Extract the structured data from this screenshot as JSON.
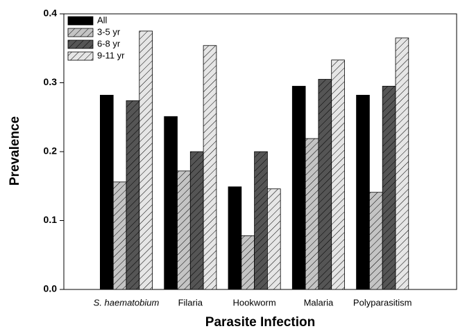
{
  "chart_data": {
    "type": "bar",
    "x_label": "Parasite Infection",
    "y_label": "Prevalence",
    "categories": [
      "S. haematobium",
      "Filaria",
      "Hookworm",
      "Malaria",
      "Polyparasitism"
    ],
    "series": [
      {
        "name": "All",
        "color": "#000000",
        "hatch": false,
        "values": [
          0.282,
          0.251,
          0.149,
          0.295,
          0.282
        ]
      },
      {
        "name": "3-5 yr",
        "color": "#c4c4c4",
        "hatch": true,
        "values": [
          0.156,
          0.172,
          0.078,
          0.219,
          0.141
        ]
      },
      {
        "name": "6-8 yr",
        "color": "#555555",
        "hatch": true,
        "values": [
          0.274,
          0.2,
          0.2,
          0.305,
          0.295
        ]
      },
      {
        "name": "9-11 yr",
        "color": "#e6e6e6",
        "hatch": true,
        "values": [
          0.375,
          0.354,
          0.146,
          0.333,
          0.365
        ]
      }
    ],
    "ylim": [
      0,
      0.4
    ],
    "yticks": [
      {
        "value": 0,
        "label": "0.0"
      },
      0.1,
      0.2,
      0.3,
      0.4
    ],
    "legend": "upper-left",
    "grid": false
  }
}
